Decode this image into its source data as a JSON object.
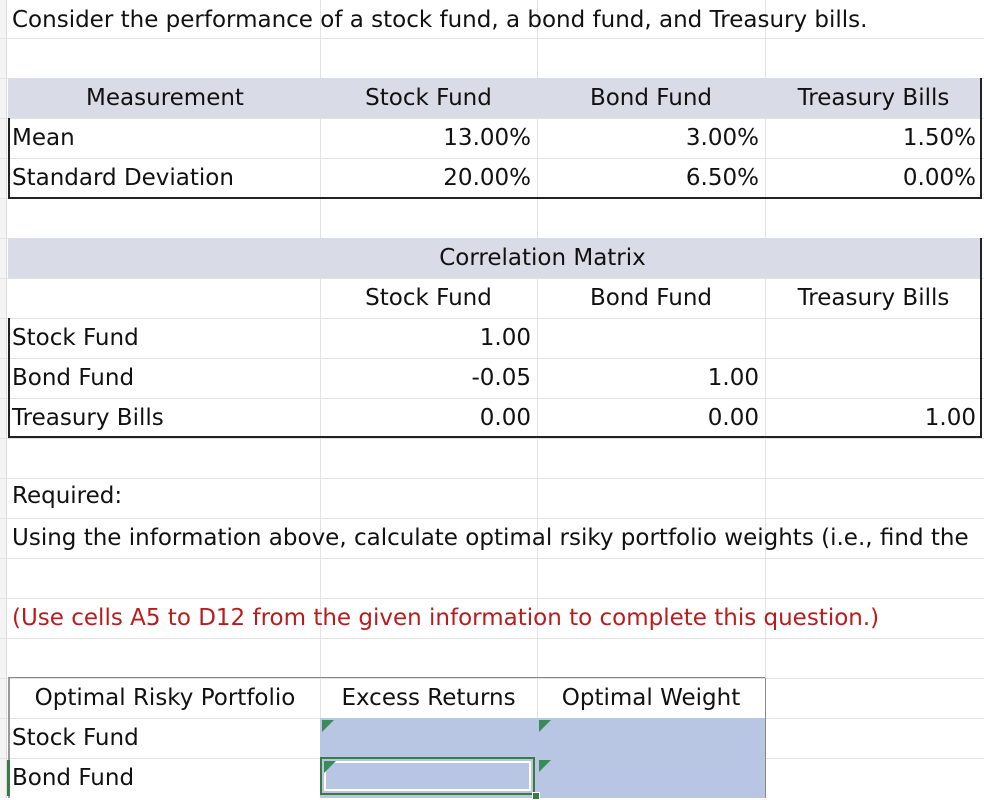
{
  "intro": "Consider the performance of a stock fund, a bond fund, and Treasury bills.",
  "perf": {
    "headers": [
      "Measurement",
      "Stock Fund",
      "Bond Fund",
      "Treasury Bills"
    ],
    "rows": [
      {
        "label": "Mean",
        "values": [
          "13.00%",
          "3.00%",
          "1.50%"
        ]
      },
      {
        "label": "Standard Deviation",
        "values": [
          "20.00%",
          "6.50%",
          "0.00%"
        ]
      }
    ]
  },
  "corr": {
    "title": "Correlation Matrix",
    "headers": [
      "Stock Fund",
      "Bond Fund",
      "Treasury Bills"
    ],
    "rows": [
      {
        "label": "Stock Fund",
        "values": [
          "1.00",
          "",
          ""
        ]
      },
      {
        "label": "Bond Fund",
        "values": [
          "-0.05",
          "1.00",
          ""
        ]
      },
      {
        "label": "Treasury Bills",
        "values": [
          "0.00",
          "0.00",
          "1.00"
        ]
      }
    ]
  },
  "required": {
    "heading": "Required:",
    "text": "Using the information above, calculate optimal rsiky portfolio weights (i.e., find the",
    "note": "(Use cells A5 to D12 from the given information to complete this question.)"
  },
  "optimal": {
    "headers": [
      "Optimal Risky Portfolio",
      "Excess Returns",
      "Optimal Weight"
    ],
    "rows": [
      "Stock Fund",
      "Bond Fund"
    ]
  },
  "colors": {
    "header_band": "#d9dce6",
    "input_cell": "#b8c6e4",
    "note_red": "#b81d1d",
    "selection": "#3c7a45"
  }
}
